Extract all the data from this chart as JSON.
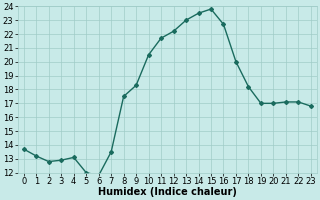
{
  "x": [
    0,
    1,
    2,
    3,
    4,
    5,
    6,
    7,
    8,
    9,
    10,
    11,
    12,
    13,
    14,
    15,
    16,
    17,
    18,
    19,
    20,
    21,
    22,
    23
  ],
  "y": [
    13.7,
    13.2,
    12.8,
    12.9,
    13.1,
    12.0,
    11.8,
    13.5,
    17.5,
    18.3,
    20.5,
    21.7,
    22.2,
    23.0,
    23.5,
    23.8,
    22.7,
    20.0,
    18.2,
    17.0,
    17.0,
    17.1,
    17.1,
    16.8
  ],
  "line_color": "#1a6b5e",
  "bg_color": "#c8eae8",
  "grid_color": "#a0ccc8",
  "xlabel": "Humidex (Indice chaleur)",
  "ylim": [
    12,
    24
  ],
  "xlim_min": -0.5,
  "xlim_max": 23.5,
  "yticks": [
    12,
    13,
    14,
    15,
    16,
    17,
    18,
    19,
    20,
    21,
    22,
    23,
    24
  ],
  "xticks": [
    0,
    1,
    2,
    3,
    4,
    5,
    6,
    7,
    8,
    9,
    10,
    11,
    12,
    13,
    14,
    15,
    16,
    17,
    18,
    19,
    20,
    21,
    22,
    23
  ],
  "marker": "D",
  "markersize": 2.0,
  "linewidth": 1.0,
  "label_fontsize": 7.0,
  "tick_fontsize": 6.0
}
